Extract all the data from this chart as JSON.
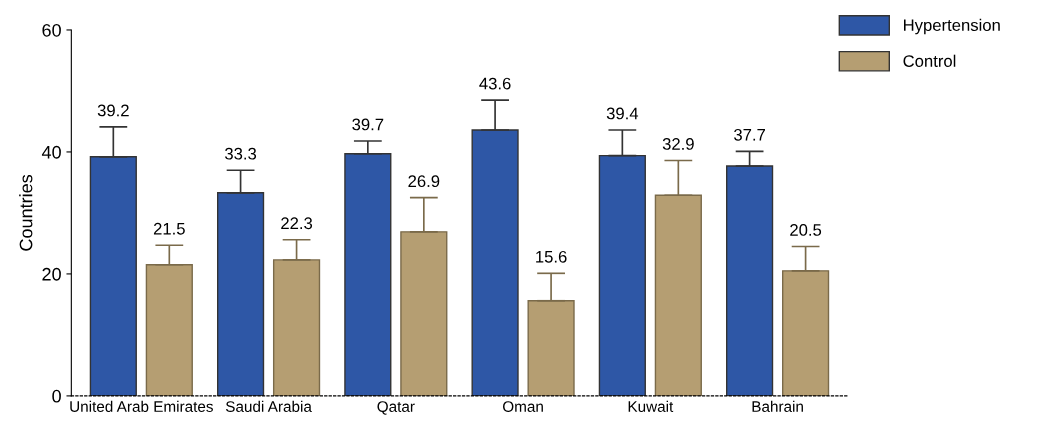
{
  "chart_data": {
    "type": "bar",
    "ylabel": "Countries",
    "categories": [
      "United Arab Emirates",
      "Saudi Arabia",
      "Qatar",
      "Oman",
      "Kuwait",
      "Bahrain"
    ],
    "series": [
      {
        "name": "Hypertension",
        "color": "#2e57a6",
        "values": [
          39.2,
          33.3,
          39.7,
          43.6,
          39.4,
          37.7
        ],
        "errors": [
          [
            39.2,
            44.1
          ],
          [
            33.3,
            37.0
          ],
          [
            39.7,
            41.8
          ],
          [
            43.6,
            48.5
          ],
          [
            39.4,
            43.6
          ],
          [
            37.7,
            40.1
          ]
        ]
      },
      {
        "name": "Control",
        "color": "#b59e72",
        "values": [
          21.5,
          22.3,
          26.9,
          15.6,
          32.9,
          20.5
        ],
        "errors": [
          [
            21.5,
            24.7
          ],
          [
            22.3,
            25.6
          ],
          [
            26.9,
            32.5
          ],
          [
            15.6,
            20.1
          ],
          [
            32.9,
            38.6
          ],
          [
            20.5,
            24.5
          ]
        ]
      }
    ],
    "ylim": [
      0,
      60
    ],
    "yticks": [
      0,
      20,
      40,
      60
    ],
    "data_labels": true,
    "legend": "top right",
    "grid": false
  }
}
